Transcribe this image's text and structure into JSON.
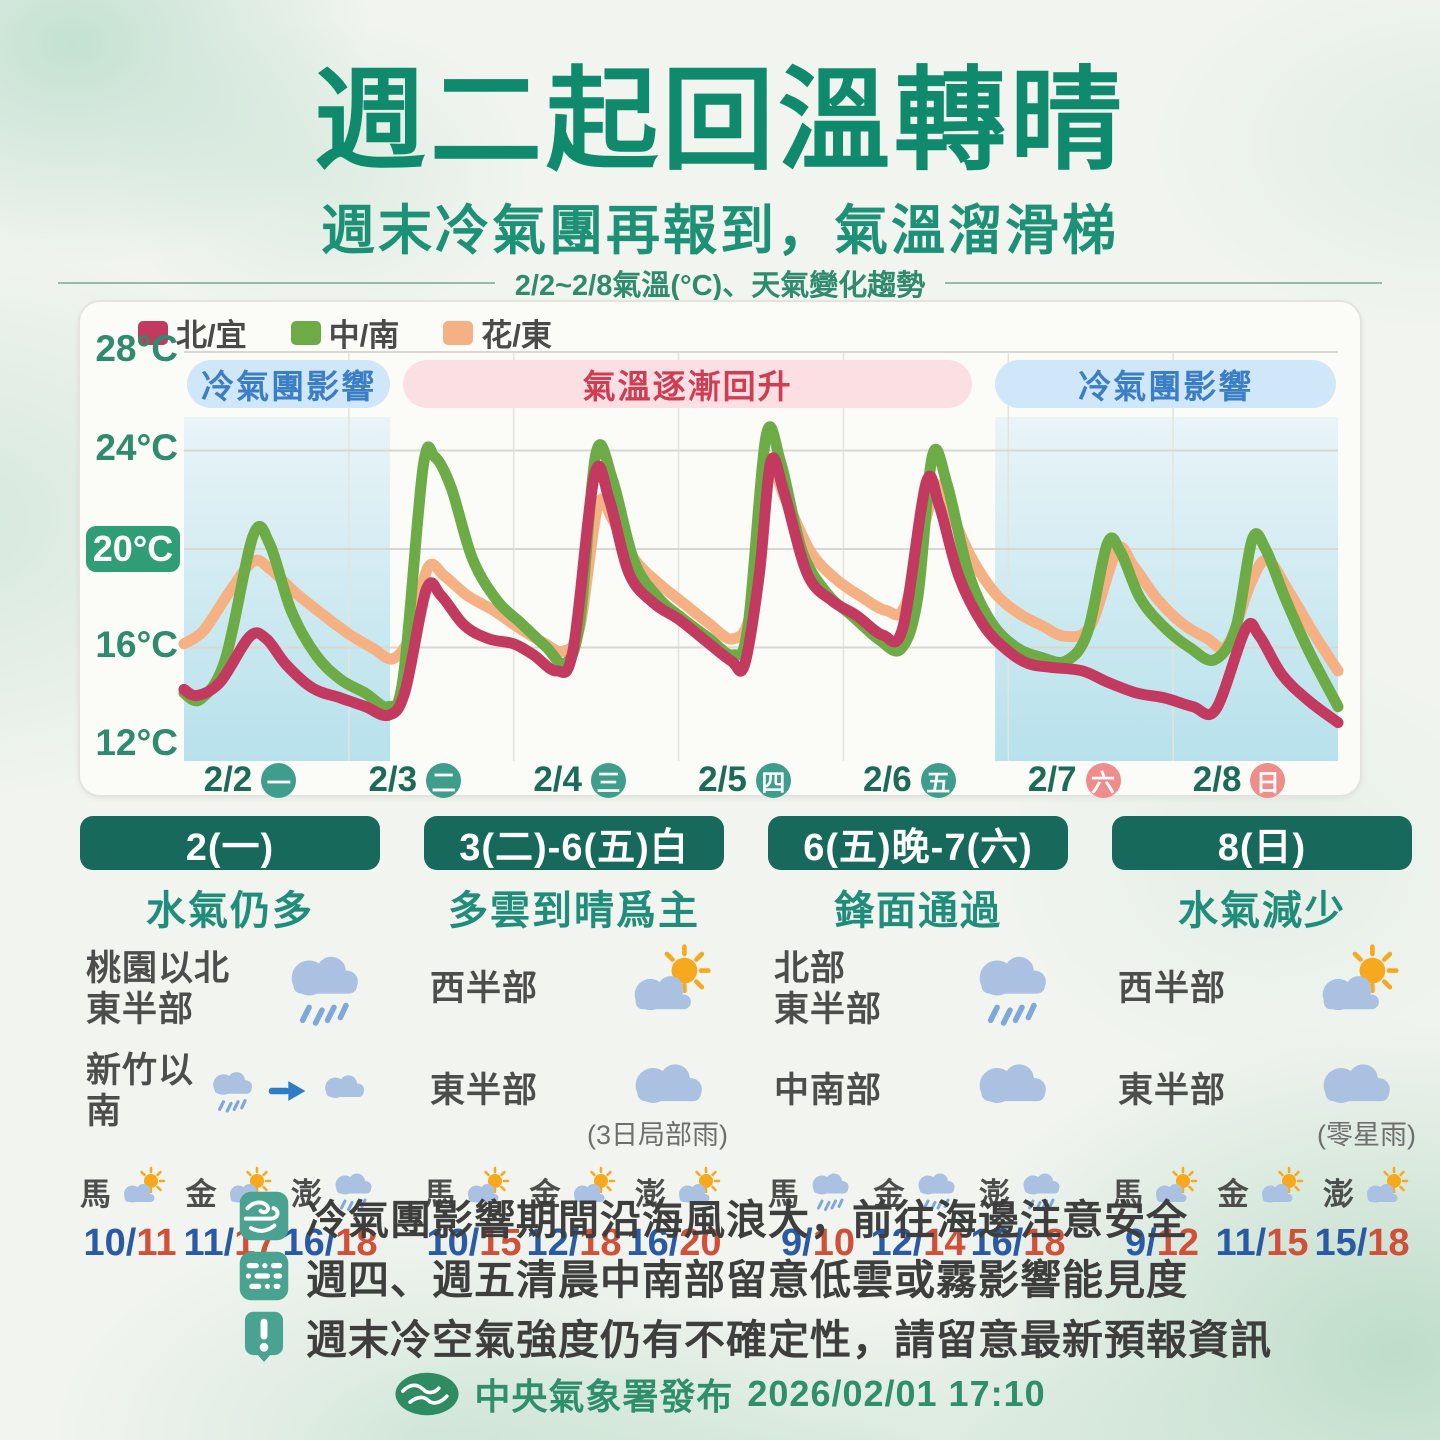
{
  "header": {
    "title": "週二起回溫轉晴",
    "subtitle": "週末冷氣團再報到，氣溫溜滑梯"
  },
  "colors": {
    "title_green": "#0f8a6c",
    "panel_header_bg": "#176a5b",
    "cold_pill_bg": "#cfe7f8",
    "cold_pill_text": "#3b7ec5",
    "warm_pill_bg": "#fbdfe2",
    "warm_pill_text": "#cf3d52",
    "temp_low": "#2b5aa5",
    "temp_high": "#d0503a",
    "cloud": "#aac1e2",
    "rain_streak": "#7fa7d9",
    "sun": "#f6a81e",
    "note_chip": "#4aa291"
  },
  "chart_data": {
    "type": "line",
    "title": "2/2~2/8氣溫(°C)、天氣變化趨勢",
    "ylabel": "°C",
    "ylim": [
      12,
      28
    ],
    "y_ticks": [
      28,
      24,
      20,
      16,
      12
    ],
    "highlight_y_tick": 20,
    "grid": true,
    "legend_position": "top-left",
    "days": [
      {
        "date": "2/2",
        "weekday": "一",
        "weekend": false
      },
      {
        "date": "2/3",
        "weekday": "二",
        "weekend": false
      },
      {
        "date": "2/4",
        "weekday": "三",
        "weekend": false
      },
      {
        "date": "2/5",
        "weekday": "四",
        "weekend": false
      },
      {
        "date": "2/6",
        "weekday": "五",
        "weekend": false
      },
      {
        "date": "2/7",
        "weekday": "六",
        "weekend": true
      },
      {
        "date": "2/8",
        "weekday": "日",
        "weekend": true
      }
    ],
    "annotations": [
      {
        "text": "冷氣團影響",
        "kind": "cold",
        "x0": 0.02,
        "x1": 1.25
      },
      {
        "text": "氣溫逐漸回升",
        "kind": "warm",
        "x0": 1.33,
        "x1": 4.78
      },
      {
        "text": "冷氣團影響",
        "kind": "cold",
        "x0": 4.92,
        "x1": 6.99
      }
    ],
    "shaded_regions": [
      {
        "x0": 0.0,
        "x1": 1.25,
        "meaning": "冷氣團影響"
      },
      {
        "x0": 4.92,
        "x1": 7.0,
        "meaning": "冷氣團影響"
      }
    ],
    "series": [
      {
        "name": "北/宜",
        "color": "#c23a5f",
        "points": [
          [
            0.0,
            14.3
          ],
          [
            0.08,
            14.05
          ],
          [
            0.22,
            14.6
          ],
          [
            0.4,
            16.45
          ],
          [
            0.5,
            16.35
          ],
          [
            0.62,
            15.3
          ],
          [
            0.78,
            14.35
          ],
          [
            0.95,
            13.95
          ],
          [
            1.1,
            13.6
          ],
          [
            1.24,
            13.25
          ],
          [
            1.34,
            14.2
          ],
          [
            1.47,
            18.35
          ],
          [
            1.56,
            18.1
          ],
          [
            1.7,
            16.9
          ],
          [
            1.85,
            16.35
          ],
          [
            2.0,
            16.15
          ],
          [
            2.12,
            15.7
          ],
          [
            2.26,
            15.05
          ],
          [
            2.36,
            15.9
          ],
          [
            2.49,
            23.0
          ],
          [
            2.58,
            22.0
          ],
          [
            2.7,
            19.0
          ],
          [
            2.85,
            17.8
          ],
          [
            3.0,
            17.15
          ],
          [
            3.15,
            16.35
          ],
          [
            3.32,
            15.45
          ],
          [
            3.4,
            15.3
          ],
          [
            3.49,
            19.0
          ],
          [
            3.56,
            23.55
          ],
          [
            3.64,
            22.3
          ],
          [
            3.78,
            19.0
          ],
          [
            3.93,
            17.9
          ],
          [
            4.08,
            17.3
          ],
          [
            4.24,
            16.5
          ],
          [
            4.36,
            16.8
          ],
          [
            4.5,
            22.65
          ],
          [
            4.58,
            21.8
          ],
          [
            4.7,
            18.9
          ],
          [
            4.85,
            16.9
          ],
          [
            5.0,
            15.85
          ],
          [
            5.12,
            15.35
          ],
          [
            5.25,
            15.2
          ],
          [
            5.45,
            15.05
          ],
          [
            5.6,
            14.6
          ],
          [
            5.78,
            14.15
          ],
          [
            5.95,
            13.95
          ],
          [
            6.12,
            13.6
          ],
          [
            6.26,
            13.5
          ],
          [
            6.44,
            16.75
          ],
          [
            6.52,
            16.5
          ],
          [
            6.66,
            14.9
          ],
          [
            6.82,
            13.85
          ],
          [
            7.0,
            12.95
          ]
        ]
      },
      {
        "name": "中/南",
        "color": "#6cab45",
        "points": [
          [
            0.0,
            14.15
          ],
          [
            0.1,
            13.9
          ],
          [
            0.25,
            15.5
          ],
          [
            0.42,
            20.55
          ],
          [
            0.52,
            20.2
          ],
          [
            0.65,
            17.5
          ],
          [
            0.8,
            15.7
          ],
          [
            0.95,
            14.7
          ],
          [
            1.1,
            14.15
          ],
          [
            1.24,
            13.6
          ],
          [
            1.33,
            14.8
          ],
          [
            1.45,
            23.3
          ],
          [
            1.52,
            23.75
          ],
          [
            1.62,
            22.5
          ],
          [
            1.75,
            19.6
          ],
          [
            1.9,
            17.9
          ],
          [
            2.05,
            16.95
          ],
          [
            2.2,
            16.0
          ],
          [
            2.31,
            15.35
          ],
          [
            2.4,
            17.0
          ],
          [
            2.5,
            23.9
          ],
          [
            2.6,
            22.8
          ],
          [
            2.73,
            19.5
          ],
          [
            2.88,
            18.0
          ],
          [
            3.02,
            17.2
          ],
          [
            3.18,
            16.4
          ],
          [
            3.33,
            15.7
          ],
          [
            3.42,
            16.8
          ],
          [
            3.53,
            24.55
          ],
          [
            3.62,
            23.5
          ],
          [
            3.75,
            19.9
          ],
          [
            3.9,
            18.2
          ],
          [
            4.05,
            17.3
          ],
          [
            4.22,
            16.3
          ],
          [
            4.35,
            15.95
          ],
          [
            4.45,
            18.0
          ],
          [
            4.54,
            23.8
          ],
          [
            4.63,
            22.6
          ],
          [
            4.76,
            19.0
          ],
          [
            4.9,
            17.0
          ],
          [
            5.05,
            16.0
          ],
          [
            5.2,
            15.6
          ],
          [
            5.35,
            15.45
          ],
          [
            5.48,
            16.6
          ],
          [
            5.6,
            20.2
          ],
          [
            5.68,
            19.9
          ],
          [
            5.8,
            18.0
          ],
          [
            5.95,
            16.8
          ],
          [
            6.1,
            16.0
          ],
          [
            6.25,
            15.5
          ],
          [
            6.38,
            16.8
          ],
          [
            6.48,
            20.4
          ],
          [
            6.56,
            20.0
          ],
          [
            6.68,
            18.0
          ],
          [
            6.82,
            15.9
          ],
          [
            7.0,
            13.6
          ]
        ]
      },
      {
        "name": "花/東",
        "color": "#f5b183",
        "points": [
          [
            0.0,
            16.15
          ],
          [
            0.12,
            16.7
          ],
          [
            0.28,
            18.3
          ],
          [
            0.42,
            19.5
          ],
          [
            0.52,
            19.2
          ],
          [
            0.68,
            18.2
          ],
          [
            0.85,
            17.3
          ],
          [
            1.0,
            16.55
          ],
          [
            1.15,
            15.95
          ],
          [
            1.27,
            15.55
          ],
          [
            1.38,
            16.6
          ],
          [
            1.48,
            19.25
          ],
          [
            1.58,
            18.9
          ],
          [
            1.72,
            18.1
          ],
          [
            1.88,
            17.5
          ],
          [
            2.03,
            16.8
          ],
          [
            2.18,
            16.2
          ],
          [
            2.3,
            15.85
          ],
          [
            2.4,
            16.8
          ],
          [
            2.51,
            21.75
          ],
          [
            2.6,
            21.2
          ],
          [
            2.73,
            19.6
          ],
          [
            2.88,
            18.6
          ],
          [
            3.03,
            17.8
          ],
          [
            3.18,
            17.0
          ],
          [
            3.33,
            16.35
          ],
          [
            3.44,
            17.5
          ],
          [
            3.55,
            23.0
          ],
          [
            3.65,
            22.0
          ],
          [
            3.8,
            19.9
          ],
          [
            3.95,
            18.8
          ],
          [
            4.1,
            18.1
          ],
          [
            4.26,
            17.5
          ],
          [
            4.38,
            17.8
          ],
          [
            4.55,
            22.4
          ],
          [
            4.64,
            21.6
          ],
          [
            4.78,
            19.6
          ],
          [
            4.92,
            18.2
          ],
          [
            5.06,
            17.4
          ],
          [
            5.2,
            16.9
          ],
          [
            5.35,
            16.45
          ],
          [
            5.5,
            16.9
          ],
          [
            5.66,
            19.95
          ],
          [
            5.76,
            19.3
          ],
          [
            5.9,
            18.0
          ],
          [
            6.05,
            17.0
          ],
          [
            6.2,
            16.4
          ],
          [
            6.33,
            16.1
          ],
          [
            6.47,
            18.6
          ],
          [
            6.57,
            19.55
          ],
          [
            6.7,
            18.3
          ],
          [
            6.85,
            16.6
          ],
          [
            7.0,
            15.05
          ]
        ]
      }
    ]
  },
  "panels": [
    {
      "header": "2(一)",
      "subtitle": "水氣仍多",
      "rows": [
        {
          "labels": [
            "桃園以北",
            "東半部"
          ],
          "icons": [
            "rain"
          ]
        },
        {
          "labels": [
            "新竹以南"
          ],
          "icons": [
            "rain",
            "arrow",
            "cloud"
          ]
        }
      ],
      "islands": [
        {
          "name": "馬",
          "icon": "partly-sunny",
          "low": "10",
          "high": "11"
        },
        {
          "name": "金",
          "icon": "partly-sunny",
          "low": "11",
          "high": "17"
        },
        {
          "name": "澎",
          "icon": "rain",
          "low": "16",
          "high": "18"
        }
      ]
    },
    {
      "header": "3(二)-6(五)白",
      "subtitle": "多雲到晴爲主",
      "rows": [
        {
          "labels": [
            "西半部"
          ],
          "icons": [
            "partly-sunny"
          ]
        },
        {
          "labels": [
            "東半部"
          ],
          "icons": [
            "cloud"
          ],
          "note": "(3日局部雨)"
        }
      ],
      "islands": [
        {
          "name": "馬",
          "icon": "partly-sunny",
          "low": "10",
          "high": "15"
        },
        {
          "name": "金",
          "icon": "partly-sunny",
          "low": "12",
          "high": "18"
        },
        {
          "name": "澎",
          "icon": "partly-sunny",
          "low": "16",
          "high": "20"
        }
      ]
    },
    {
      "header": "6(五)晚-7(六)",
      "subtitle": "鋒面通過",
      "rows": [
        {
          "labels": [
            "北部",
            "東半部"
          ],
          "icons": [
            "rain"
          ]
        },
        {
          "labels": [
            "中南部"
          ],
          "icons": [
            "cloud"
          ]
        }
      ],
      "islands": [
        {
          "name": "馬",
          "icon": "rain",
          "low": "9",
          "high": "10"
        },
        {
          "name": "金",
          "icon": "rain",
          "low": "12",
          "high": "14"
        },
        {
          "name": "澎",
          "icon": "rain",
          "low": "16",
          "high": "18"
        }
      ]
    },
    {
      "header": "8(日)",
      "subtitle": "水氣減少",
      "rows": [
        {
          "labels": [
            "西半部"
          ],
          "icons": [
            "partly-sunny"
          ]
        },
        {
          "labels": [
            "東半部"
          ],
          "icons": [
            "cloud"
          ],
          "note": "(零星雨)"
        }
      ],
      "islands": [
        {
          "name": "馬",
          "icon": "partly-sunny",
          "low": "9",
          "high": "12"
        },
        {
          "name": "金",
          "icon": "partly-sunny",
          "low": "11",
          "high": "15"
        },
        {
          "name": "澎",
          "icon": "partly-sunny",
          "low": "15",
          "high": "18"
        }
      ]
    }
  ],
  "notes": [
    {
      "icon": "wind",
      "text": "冷氣團影響期間沿海風浪大，前往海邊注意安全"
    },
    {
      "icon": "fog",
      "text": "週四、週五清晨中南部留意低雲或霧影響能見度"
    },
    {
      "icon": "alert",
      "text": "週末冷空氣強度仍有不確定性，請留意最新預報資訊"
    }
  ],
  "footer": {
    "agency": "中央氣象署發布",
    "datetime": "2026/02/01 17:10"
  }
}
